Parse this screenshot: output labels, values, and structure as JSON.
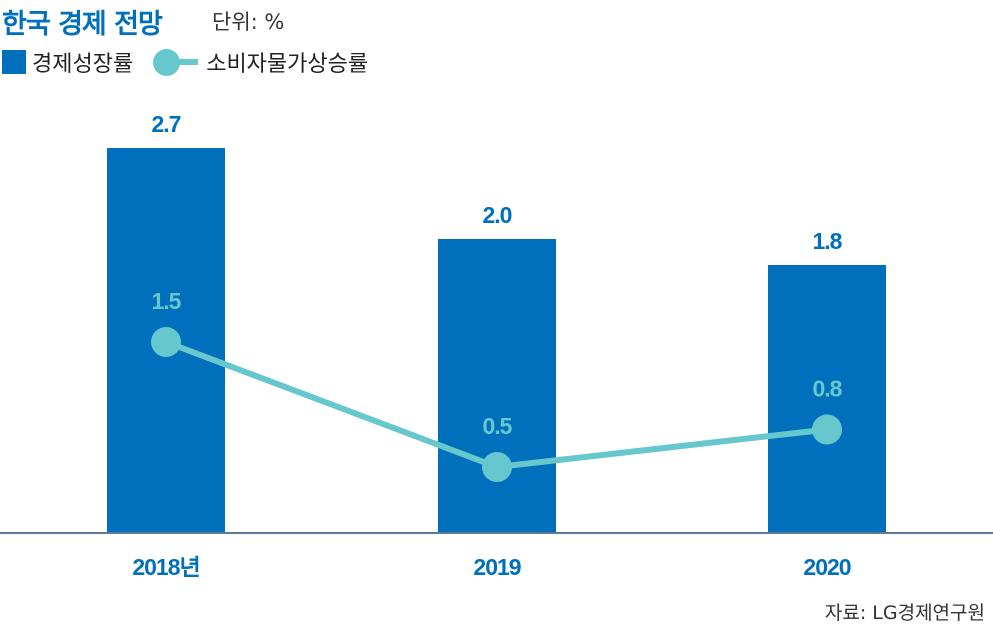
{
  "header": {
    "title": "한국 경제 전망",
    "unit": "단위: %"
  },
  "source": "자료: LG경제연구원",
  "colors": {
    "bar": "#0070bc",
    "line": "#66c8cc",
    "axis": "#5a7a9a"
  },
  "chart_data": {
    "type": "bar",
    "title": "한국 경제 전망",
    "categories": [
      "2018년",
      "2019",
      "2020"
    ],
    "series": [
      {
        "name": "경제성장률",
        "type": "bar",
        "values": [
          2.7,
          2.0,
          1.8
        ],
        "labels": [
          "2.7",
          "2.0",
          "1.8"
        ]
      },
      {
        "name": "소비자물가상승률",
        "type": "line",
        "values": [
          1.5,
          0.5,
          0.8
        ],
        "labels": [
          "1.5",
          "0.5",
          "0.8"
        ]
      }
    ],
    "legend": "top-left"
  }
}
